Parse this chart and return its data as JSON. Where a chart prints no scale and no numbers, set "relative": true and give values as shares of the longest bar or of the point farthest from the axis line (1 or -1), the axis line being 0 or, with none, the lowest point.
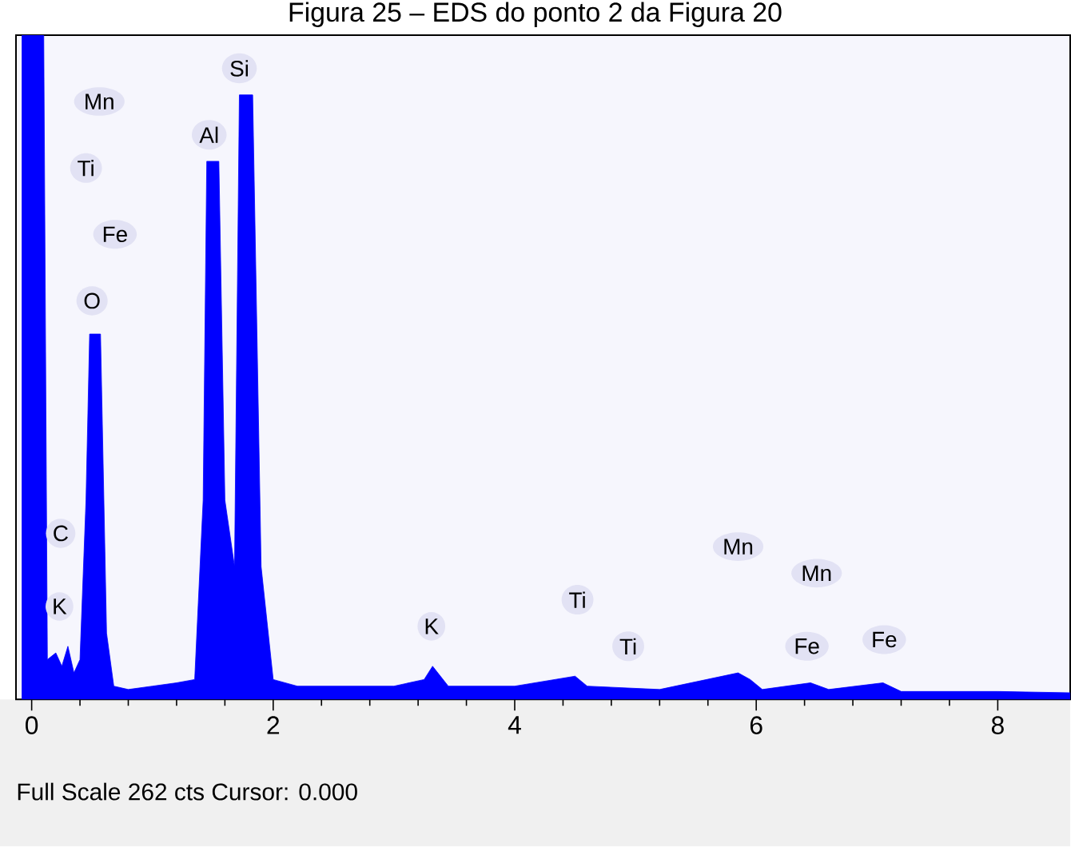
{
  "chart_data": {
    "type": "area",
    "title": "Figura 25 – EDS do ponto 2 da Figura 20",
    "relative": true,
    "xlim": [
      -0.13,
      8.6
    ],
    "xticks": [
      0,
      2,
      4,
      6,
      8
    ],
    "x": [
      -0.08,
      0.1,
      0.13,
      0.2,
      0.25,
      0.3,
      0.35,
      0.4,
      0.45,
      0.48,
      0.57,
      0.62,
      0.68,
      0.8,
      1.0,
      1.2,
      1.35,
      1.42,
      1.45,
      1.55,
      1.6,
      1.68,
      1.72,
      1.83,
      1.9,
      2.0,
      2.2,
      2.6,
      3.0,
      3.25,
      3.32,
      3.45,
      4.0,
      4.5,
      4.6,
      5.2,
      5.85,
      5.95,
      6.05,
      6.45,
      6.6,
      7.05,
      7.2,
      8.0,
      8.6
    ],
    "values": [
      1,
      1,
      0.06,
      0.07,
      0.05,
      0.08,
      0.04,
      0.06,
      0.3,
      0.55,
      0.55,
      0.1,
      0.02,
      0.015,
      0.02,
      0.025,
      0.03,
      0.3,
      0.81,
      0.81,
      0.3,
      0.2,
      0.91,
      0.91,
      0.2,
      0.03,
      0.02,
      0.02,
      0.02,
      0.03,
      0.05,
      0.02,
      0.02,
      0.035,
      0.02,
      0.015,
      0.04,
      0.03,
      0.015,
      0.025,
      0.015,
      0.025,
      0.012,
      0.012,
      0.01
    ],
    "color": "#0000ff",
    "annotations": [
      {
        "text": "Si",
        "x": 1.72,
        "y": 0.95
      },
      {
        "text": "Mn",
        "x": 0.56,
        "y": 0.9
      },
      {
        "text": "Al",
        "x": 1.47,
        "y": 0.85
      },
      {
        "text": "Ti",
        "x": 0.45,
        "y": 0.8
      },
      {
        "text": "Fe",
        "x": 0.69,
        "y": 0.7
      },
      {
        "text": "O",
        "x": 0.5,
        "y": 0.6
      },
      {
        "text": "C",
        "x": 0.24,
        "y": 0.25
      },
      {
        "text": "K",
        "x": 0.23,
        "y": 0.14
      },
      {
        "text": "K",
        "x": 3.31,
        "y": 0.11
      },
      {
        "text": "Ti",
        "x": 4.52,
        "y": 0.15
      },
      {
        "text": "Ti",
        "x": 4.94,
        "y": 0.08
      },
      {
        "text": "Mn",
        "x": 5.85,
        "y": 0.23
      },
      {
        "text": "Mn",
        "x": 6.5,
        "y": 0.19
      },
      {
        "text": "Fe",
        "x": 6.42,
        "y": 0.08
      },
      {
        "text": "Fe",
        "x": 7.06,
        "y": 0.09
      },
      "Full Scale 262 cts Cursor: 0.000"
    ]
  }
}
